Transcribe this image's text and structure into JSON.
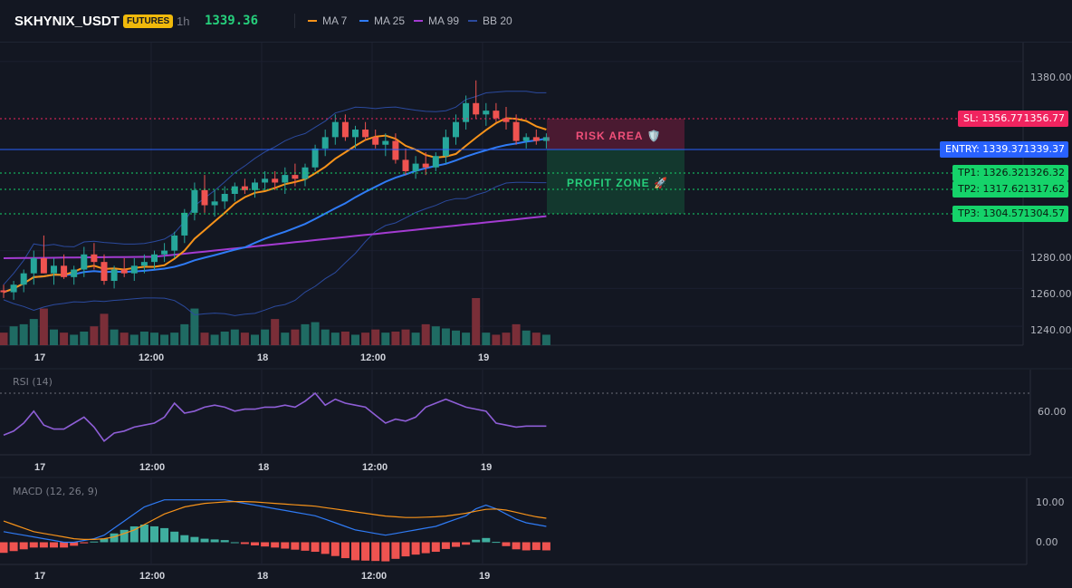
{
  "header": {
    "symbol": "SKHYNIX_USDT",
    "badge": "FUTURES",
    "timeframe": "1h",
    "last_price": "1339.36",
    "badge_color": "#f0b90b",
    "price_color": "#26d07c"
  },
  "legend": [
    {
      "label": "MA 7",
      "color": "#f7931a"
    },
    {
      "label": "MA 25",
      "color": "#2f7bf5"
    },
    {
      "label": "MA 99",
      "color": "#a33bd1"
    },
    {
      "label": "BB 20",
      "color": "#2b4a9e"
    }
  ],
  "trade": {
    "sl_label": "SL: 1356.77",
    "sl_value": "1356.77",
    "entry_label": "ENTRY: 1339.37",
    "entry_value": "1339.37",
    "tp1_label": "TP1: 1326.32",
    "tp1_value": "1326.32",
    "tp2_label": "TP2: 1317.62",
    "tp2_value": "1317.62",
    "tp3_label": "TP3: 1304.57",
    "tp3_value": "1304.57",
    "risk_label": "RISK AREA 🛡️",
    "profit_label": "PROFIT ZONE 🚀",
    "sl_color": "#f0245f",
    "entry_color": "#2962ff",
    "tp_color": "#15d36a"
  },
  "panes": {
    "rsi_label": "RSI (14)",
    "macd_label": "MACD (12, 26, 9)"
  },
  "price_axis": [
    "1380.00",
    "1280.00",
    "1260.00",
    "1240.00"
  ],
  "rsi_axis": [
    "60.00"
  ],
  "macd_axis": [
    "10.00",
    "0.00"
  ],
  "time_axis": [
    "17",
    "12:00",
    "18",
    "12:00",
    "19"
  ],
  "colors": {
    "up": "#26a69a",
    "down": "#ef5350"
  },
  "chart_data": {
    "type": "candlestick",
    "timeframe": "1h",
    "candles": [
      [
        1259,
        1262,
        1255,
        1258
      ],
      [
        1258,
        1264,
        1254,
        1262
      ],
      [
        1262,
        1270,
        1258,
        1268
      ],
      [
        1268,
        1280,
        1262,
        1276
      ],
      [
        1276,
        1288,
        1268,
        1268
      ],
      [
        1268,
        1276,
        1262,
        1272
      ],
      [
        1272,
        1278,
        1265,
        1266
      ],
      [
        1266,
        1272,
        1262,
        1270
      ],
      [
        1270,
        1282,
        1266,
        1278
      ],
      [
        1278,
        1284,
        1270,
        1274
      ],
      [
        1274,
        1278,
        1262,
        1264
      ],
      [
        1264,
        1272,
        1260,
        1270
      ],
      [
        1270,
        1276,
        1266,
        1268
      ],
      [
        1268,
        1276,
        1264,
        1272
      ],
      [
        1272,
        1278,
        1268,
        1274
      ],
      [
        1274,
        1280,
        1270,
        1278
      ],
      [
        1278,
        1284,
        1274,
        1280
      ],
      [
        1280,
        1290,
        1276,
        1288
      ],
      [
        1288,
        1302,
        1284,
        1300
      ],
      [
        1300,
        1316,
        1296,
        1312
      ],
      [
        1312,
        1320,
        1300,
        1304
      ],
      [
        1304,
        1312,
        1298,
        1306
      ],
      [
        1306,
        1314,
        1302,
        1310
      ],
      [
        1310,
        1316,
        1306,
        1314
      ],
      [
        1314,
        1318,
        1310,
        1312
      ],
      [
        1312,
        1318,
        1308,
        1316
      ],
      [
        1316,
        1322,
        1312,
        1318
      ],
      [
        1318,
        1322,
        1312,
        1316
      ],
      [
        1316,
        1324,
        1310,
        1320
      ],
      [
        1320,
        1326,
        1314,
        1318
      ],
      [
        1318,
        1326,
        1314,
        1324
      ],
      [
        1324,
        1336,
        1322,
        1334
      ],
      [
        1334,
        1344,
        1330,
        1340
      ],
      [
        1340,
        1352,
        1336,
        1348
      ],
      [
        1348,
        1352,
        1338,
        1340
      ],
      [
        1340,
        1346,
        1334,
        1344
      ],
      [
        1344,
        1348,
        1338,
        1340
      ],
      [
        1340,
        1344,
        1334,
        1336
      ],
      [
        1336,
        1342,
        1330,
        1338
      ],
      [
        1338,
        1342,
        1326,
        1328
      ],
      [
        1328,
        1334,
        1320,
        1322
      ],
      [
        1322,
        1330,
        1318,
        1326
      ],
      [
        1326,
        1332,
        1320,
        1324
      ],
      [
        1324,
        1332,
        1322,
        1330
      ],
      [
        1330,
        1344,
        1326,
        1340
      ],
      [
        1340,
        1352,
        1336,
        1348
      ],
      [
        1348,
        1362,
        1344,
        1358
      ],
      [
        1358,
        1370,
        1350,
        1352
      ],
      [
        1352,
        1358,
        1346,
        1354
      ],
      [
        1354,
        1358,
        1348,
        1350
      ],
      [
        1350,
        1356,
        1344,
        1348
      ],
      [
        1348,
        1352,
        1336,
        1338
      ],
      [
        1338,
        1342,
        1334,
        1340
      ],
      [
        1340,
        1344,
        1336,
        1338
      ],
      [
        1338,
        1342,
        1334,
        1340
      ]
    ],
    "volume": [
      12,
      18,
      20,
      25,
      35,
      15,
      12,
      10,
      13,
      18,
      30,
      15,
      12,
      10,
      13,
      12,
      10,
      12,
      20,
      35,
      12,
      10,
      13,
      15,
      12,
      10,
      15,
      25,
      12,
      15,
      20,
      22,
      15,
      12,
      13,
      10,
      12,
      15,
      12,
      13,
      15,
      12,
      20,
      18,
      16,
      14,
      12,
      45,
      12,
      10,
      12,
      20,
      14,
      12,
      10
    ],
    "rsi": [
      38,
      42,
      50,
      62,
      48,
      44,
      44,
      50,
      56,
      46,
      32,
      40,
      42,
      46,
      48,
      50,
      56,
      70,
      60,
      62,
      66,
      68,
      66,
      62,
      64,
      64,
      66,
      66,
      68,
      66,
      72,
      80,
      68,
      74,
      70,
      68,
      66,
      58,
      50,
      54,
      52,
      56,
      66,
      70,
      74,
      70,
      66,
      64,
      62,
      50,
      48,
      46,
      47,
      47,
      47
    ],
    "macd": [
      3,
      2.5,
      2,
      1.5,
      1,
      0.5,
      0,
      0,
      0.5,
      1,
      2,
      4,
      6,
      8,
      10,
      11,
      12,
      12,
      12,
      12,
      12,
      12,
      12,
      11.5,
      11,
      10.5,
      10,
      9.5,
      9,
      8.5,
      8,
      7.5,
      6.5,
      5.5,
      4.5,
      3.5,
      3,
      2.5,
      2,
      2.5,
      3,
      3.5,
      4,
      4.5,
      5.5,
      6.5,
      7.5,
      9.5,
      10.5,
      9.5,
      8,
      6.5,
      5.5,
      5,
      4.5
    ],
    "macd_signal": [
      6,
      5,
      4,
      3,
      2.5,
      2,
      1.5,
      1,
      0.8,
      0.8,
      1,
      1.5,
      2.5,
      3.5,
      5,
      6.5,
      8,
      9,
      10,
      10.5,
      11,
      11.2,
      11.4,
      11.5,
      11.5,
      11.4,
      11.2,
      11,
      10.8,
      10.6,
      10.4,
      10.2,
      9.8,
      9.4,
      9,
      8.6,
      8.2,
      7.8,
      7.4,
      7.2,
      7,
      7,
      7.1,
      7.2,
      7.4,
      7.8,
      8.2,
      8.8,
      9.3,
      9.4,
      9.1,
      8.5,
      7.8,
      7.2,
      6.8
    ],
    "y_range": [
      1230,
      1390
    ],
    "rsi_range": [
      20,
      100
    ],
    "macd_range": [
      -5,
      15
    ]
  }
}
